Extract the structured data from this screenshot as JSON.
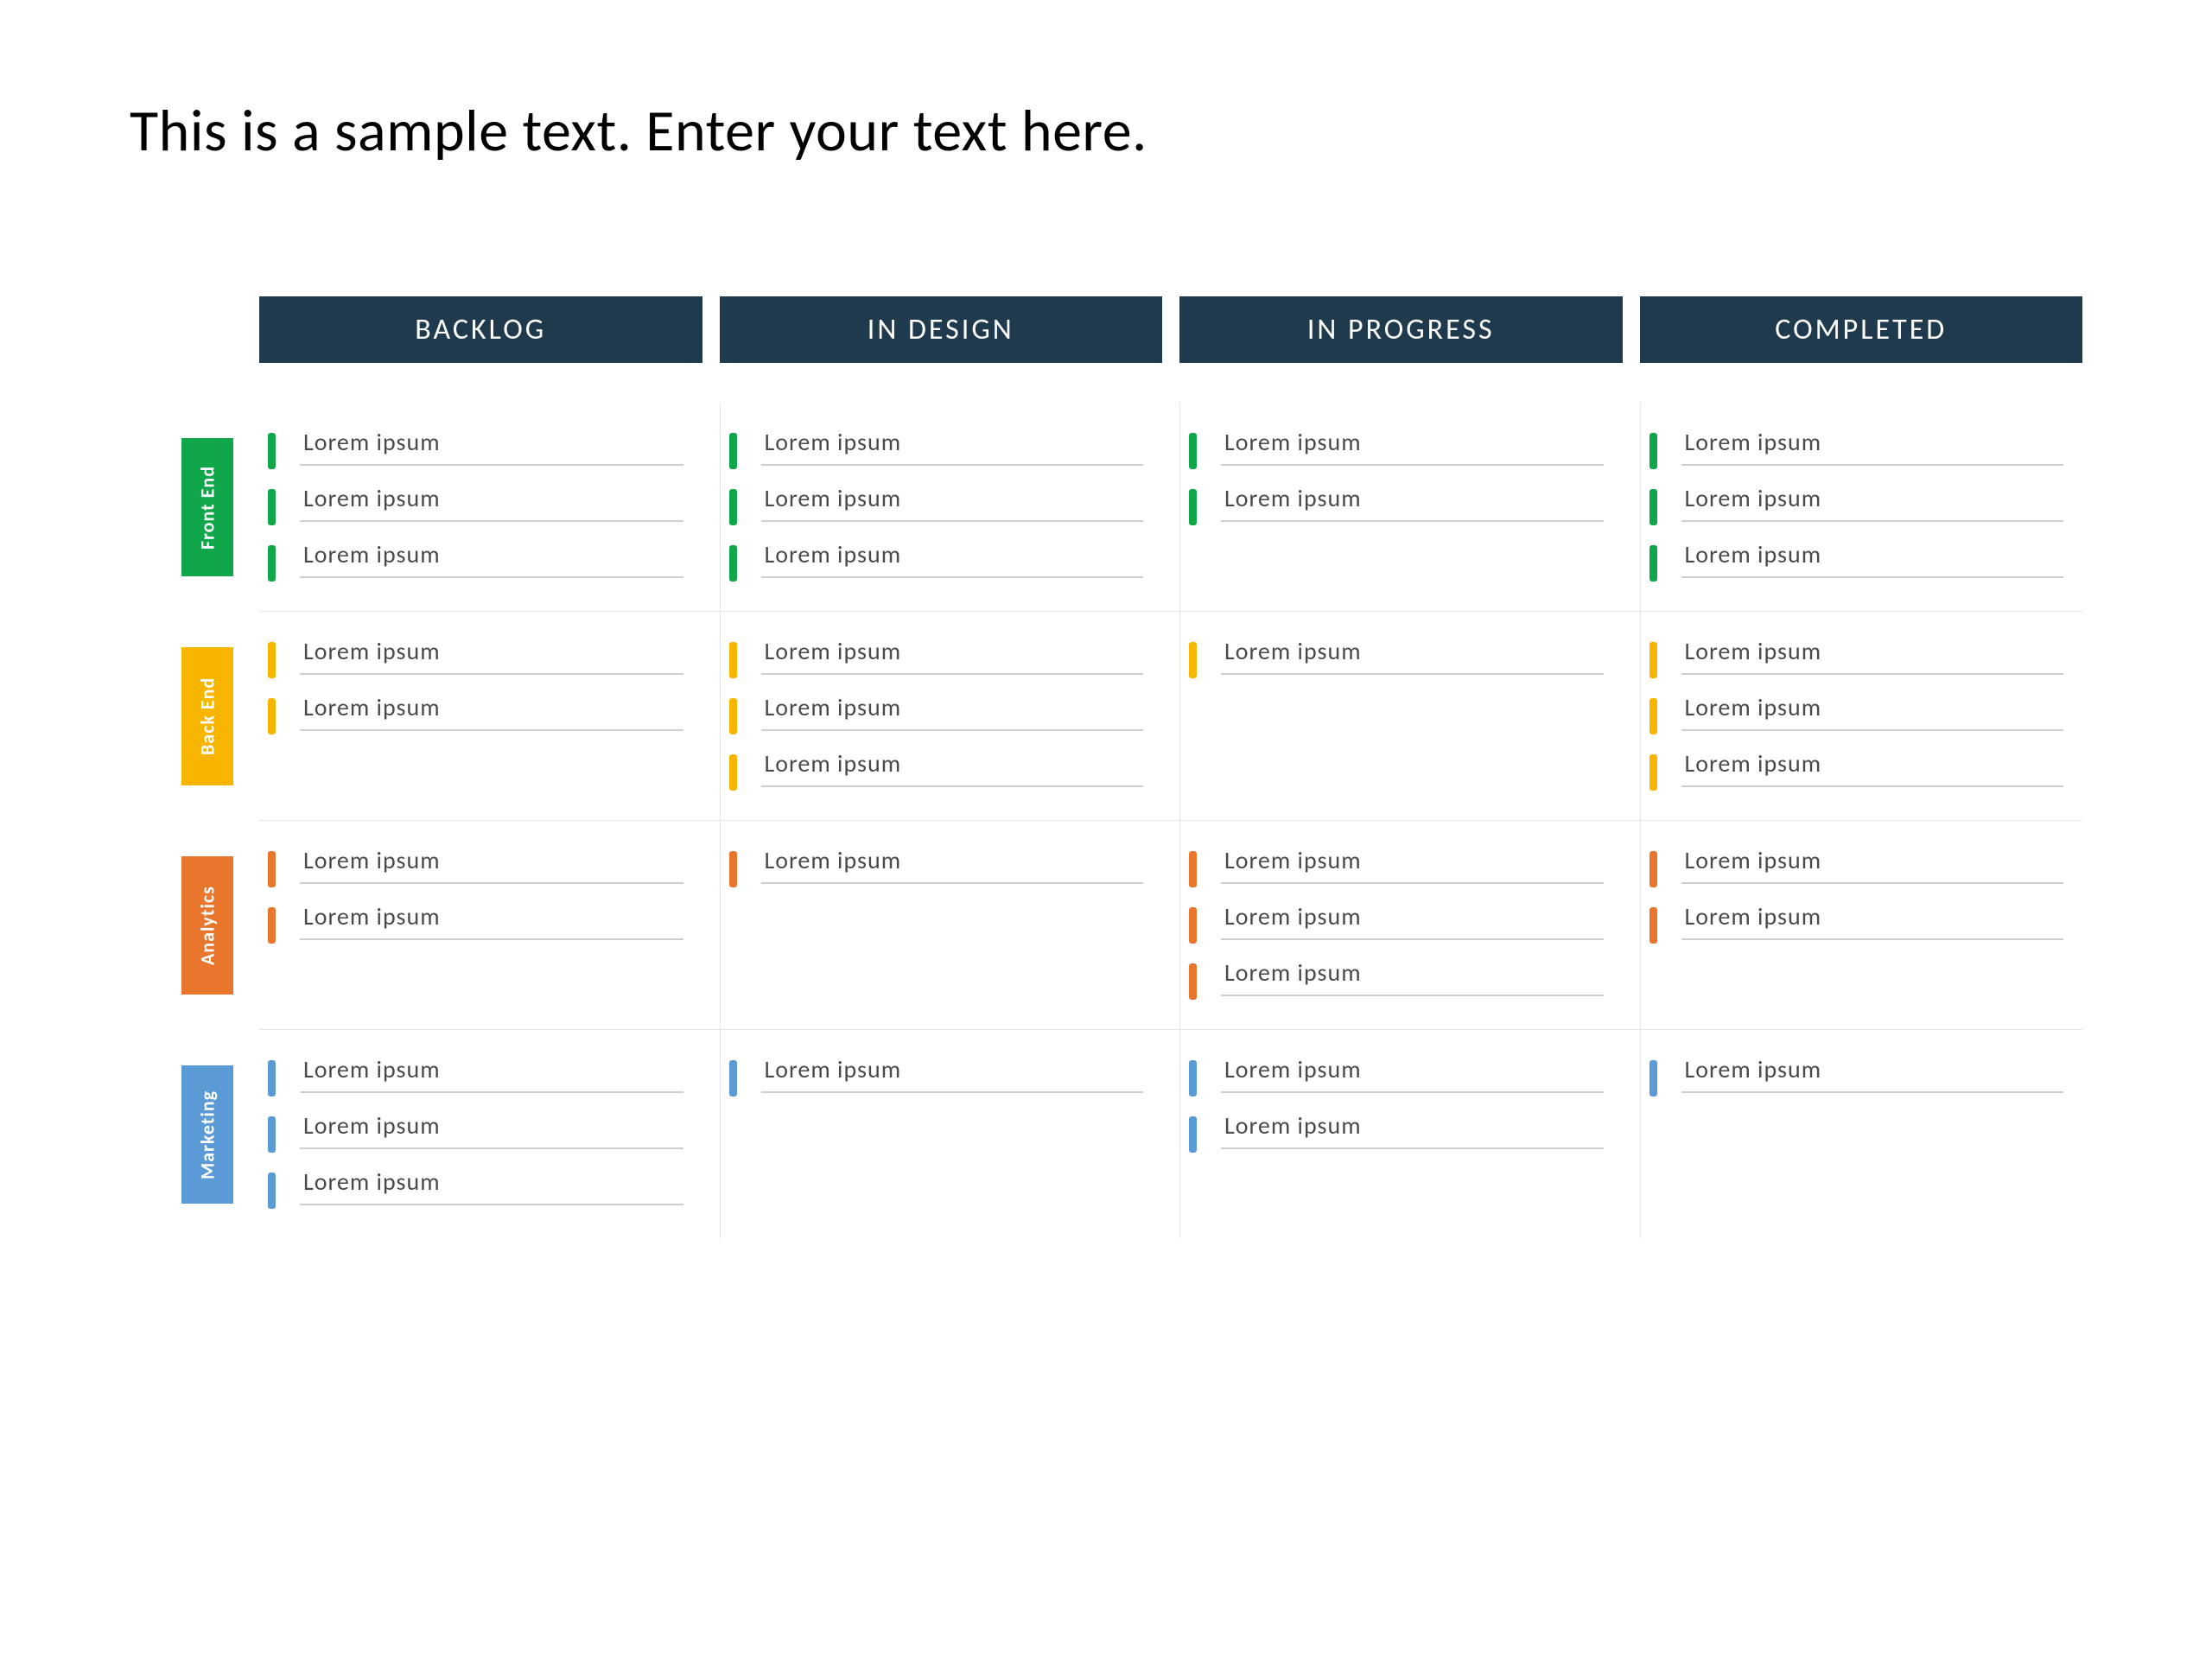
{
  "title": "This is a sample text. Enter your text here.",
  "header_bg": "#1f3a4d",
  "header_text_color": "#ffffff",
  "item_text_color": "#4a4a4a",
  "underline_color": "#cfcfcf",
  "grid_line_color": "#e6e6e6",
  "columns": [
    {
      "id": "backlog",
      "label": "BACKLOG"
    },
    {
      "id": "design",
      "label": "IN DESIGN"
    },
    {
      "id": "progress",
      "label": "IN PROGRESS"
    },
    {
      "id": "completed",
      "label": "COMPLETED"
    }
  ],
  "rows": [
    {
      "id": "frontend",
      "label": "Front End",
      "color": "#0fa74a",
      "cells": {
        "backlog": [
          "Lorem ipsum",
          "Lorem ipsum",
          "Lorem ipsum"
        ],
        "design": [
          "Lorem ipsum",
          "Lorem ipsum",
          "Lorem ipsum"
        ],
        "progress": [
          "Lorem ipsum",
          "Lorem ipsum"
        ],
        "completed": [
          "Lorem ipsum",
          "Lorem ipsum",
          "Lorem ipsum"
        ]
      }
    },
    {
      "id": "backend",
      "label": "Back End",
      "color": "#f7b500",
      "cells": {
        "backlog": [
          "Lorem ipsum",
          "Lorem ipsum"
        ],
        "design": [
          "Lorem ipsum",
          "Lorem ipsum",
          "Lorem ipsum"
        ],
        "progress": [
          "Lorem ipsum"
        ],
        "completed": [
          "Lorem ipsum",
          "Lorem ipsum",
          "Lorem ipsum"
        ]
      }
    },
    {
      "id": "analytics",
      "label": "Analytics",
      "color": "#e8762c",
      "cells": {
        "backlog": [
          "Lorem ipsum",
          "Lorem ipsum"
        ],
        "design": [
          "Lorem ipsum"
        ],
        "progress": [
          "Lorem ipsum",
          "Lorem ipsum",
          "Lorem ipsum"
        ],
        "completed": [
          "Lorem ipsum",
          "Lorem ipsum"
        ]
      }
    },
    {
      "id": "marketing",
      "label": "Marketing",
      "color": "#5a9bd5",
      "cells": {
        "backlog": [
          "Lorem ipsum",
          "Lorem ipsum",
          "Lorem ipsum"
        ],
        "design": [
          "Lorem ipsum"
        ],
        "progress": [
          "Lorem ipsum",
          "Lorem ipsum"
        ],
        "completed": [
          "Lorem ipsum"
        ]
      }
    }
  ]
}
